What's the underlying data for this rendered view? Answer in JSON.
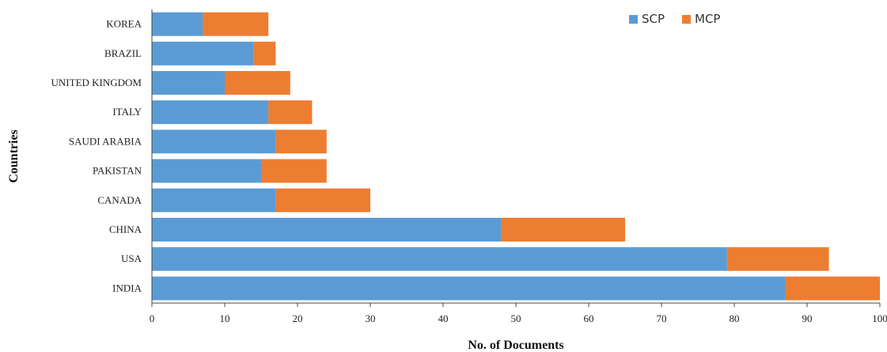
{
  "chart_data": {
    "type": "bar",
    "orientation": "horizontal",
    "stacked": true,
    "categories": [
      "INDIA",
      "USA",
      "CHINA",
      "CANADA",
      "PAKISTAN",
      "SAUDI ARABIA",
      "ITALY",
      "UNITED KINGDOM",
      "BRAZIL",
      "KOREA"
    ],
    "series": [
      {
        "name": "SCP",
        "color": "#5B9BD5",
        "values": [
          87,
          79,
          48,
          17,
          15,
          17,
          16,
          10,
          14,
          7
        ]
      },
      {
        "name": "MCP",
        "color": "#ED7D31",
        "values": [
          13,
          14,
          17,
          13,
          9,
          7,
          6,
          9,
          3,
          9
        ]
      }
    ],
    "xlabel": "No. of Documents",
    "ylabel": "Countries",
    "xlim": [
      0,
      100
    ],
    "xticks": [
      "0",
      "10",
      "20",
      "30",
      "40",
      "50",
      "60",
      "70",
      "80",
      "90",
      "100"
    ],
    "grid": false,
    "legend_position": "top-right"
  }
}
